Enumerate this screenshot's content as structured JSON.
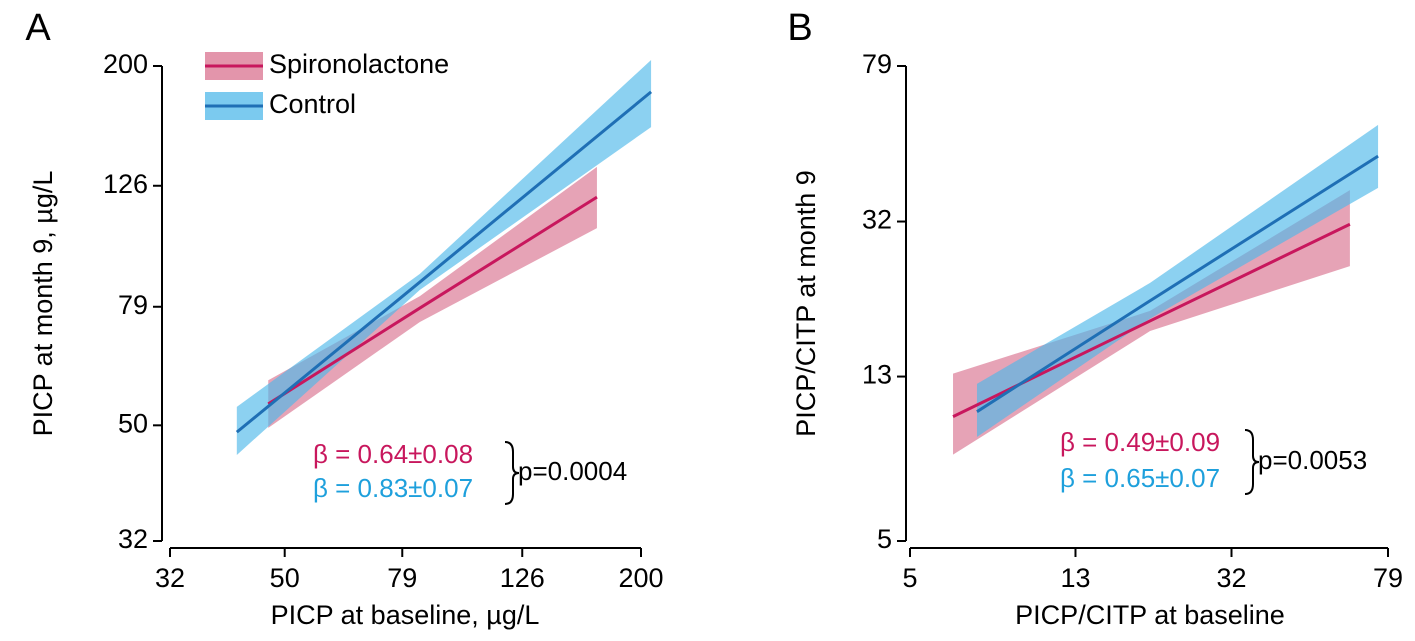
{
  "chart_data": [
    {
      "type": "line",
      "panel": "A",
      "xlabel": "PICP at baseline, µg/L",
      "ylabel": "PICP at month 9, µg/L",
      "xscale": "log",
      "yscale": "log",
      "xlim": [
        32,
        200
      ],
      "ylim": [
        32,
        200
      ],
      "xticks": [
        32,
        50,
        79,
        126,
        200
      ],
      "yticks": [
        32,
        50,
        79,
        126,
        200
      ],
      "legend": "upper left",
      "series": [
        {
          "name": "Spironolactone",
          "color": "#c8175d",
          "band_color": "#d9728f",
          "x": [
            46.9,
            84.6,
            168.5
          ],
          "values": [
            54.3,
            78.6,
            120.6
          ],
          "lower": [
            49.5,
            74.5,
            107
          ],
          "upper": [
            59.5,
            82.3,
            135.5
          ]
        },
        {
          "name": "Control",
          "color": "#1f6fb5",
          "band_color": "#4fb8ea",
          "x": [
            41.5,
            84.6,
            208
          ],
          "values": [
            48.7,
            86.9,
            181
          ],
          "lower": [
            44.6,
            84.3,
            158
          ],
          "upper": [
            53.7,
            89.7,
            204.7
          ]
        }
      ],
      "annotations": [
        {
          "text": "β = 0.64±0.08",
          "color": "#c8175d"
        },
        {
          "text": "β = 0.83±0.07",
          "color": "#1ea0dc"
        },
        {
          "text": "p=0.0004",
          "color": "#000000"
        }
      ]
    },
    {
      "type": "line",
      "panel": "B",
      "xlabel": "PICP/CITP at baseline",
      "ylabel": "PICP/CITP at month 9",
      "xscale": "log",
      "yscale": "log",
      "xlim": [
        5,
        79
      ],
      "ylim": [
        5,
        79
      ],
      "xticks": [
        5,
        13,
        32,
        79
      ],
      "yticks": [
        5,
        13,
        32,
        79
      ],
      "series": [
        {
          "name": "Spironolactone",
          "color": "#c8175d",
          "band_color": "#d9728f",
          "x": [
            6.41,
            20.0,
            63.4
          ],
          "values": [
            10.3,
            17.96,
            31.5
          ],
          "lower": [
            8.26,
            16.94,
            24.7
          ],
          "upper": [
            13.22,
            19.04,
            38.4
          ]
        },
        {
          "name": "Control",
          "color": "#1f6fb5",
          "band_color": "#4fb8ea",
          "x": [
            7.36,
            20.0,
            74.6
          ],
          "values": [
            10.6,
            20.2,
            46.8
          ],
          "lower": [
            9.15,
            18.2,
            38.9
          ],
          "upper": [
            12.46,
            22.4,
            56.1
          ]
        }
      ],
      "annotations": [
        {
          "text": "β = 0.49±0.09",
          "color": "#c8175d"
        },
        {
          "text": "β = 0.65±0.07",
          "color": "#1ea0dc"
        },
        {
          "text": "p=0.0053",
          "color": "#000000"
        }
      ]
    }
  ]
}
